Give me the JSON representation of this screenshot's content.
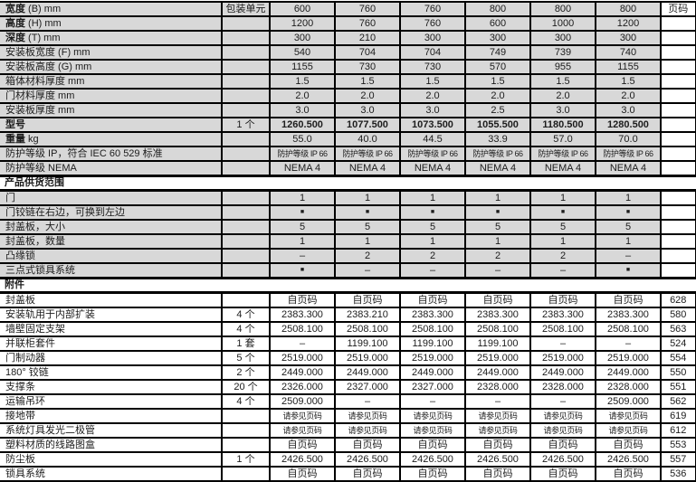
{
  "page_column_header": "页码",
  "sections": [
    {
      "id": "specifications",
      "shaded": true,
      "title": "",
      "rows": [
        {
          "label_bold": "宽度",
          "label": " (B) mm",
          "unit": "包装单元",
          "values": [
            "600",
            "760",
            "760",
            "800",
            "800",
            "800"
          ],
          "page": "页码"
        },
        {
          "label_bold": "高度",
          "label": " (H) mm",
          "unit": "",
          "values": [
            "1200",
            "760",
            "760",
            "600",
            "1000",
            "1200"
          ],
          "page": ""
        },
        {
          "label_bold": "深度",
          "label": " (T) mm",
          "unit": "",
          "values": [
            "300",
            "210",
            "300",
            "300",
            "300",
            "300"
          ],
          "page": ""
        },
        {
          "label_bold": "",
          "label": "安装板宽度 (F) mm",
          "unit": "",
          "values": [
            "540",
            "704",
            "704",
            "749",
            "739",
            "740"
          ],
          "page": ""
        },
        {
          "label_bold": "",
          "label": "安装板高度 (G) mm",
          "unit": "",
          "values": [
            "1155",
            "730",
            "730",
            "570",
            "955",
            "1155"
          ],
          "page": ""
        },
        {
          "label_bold": "",
          "label": "箱体材料厚度 mm",
          "unit": "",
          "values": [
            "1.5",
            "1.5",
            "1.5",
            "1.5",
            "1.5",
            "1.5"
          ],
          "page": ""
        },
        {
          "label_bold": "",
          "label": "门材料厚度 mm",
          "unit": "",
          "values": [
            "2.0",
            "2.0",
            "2.0",
            "2.0",
            "2.0",
            "2.0"
          ],
          "page": ""
        },
        {
          "label_bold": "",
          "label": "安装板厚度 mm",
          "unit": "",
          "values": [
            "3.0",
            "3.0",
            "3.0",
            "2.5",
            "3.0",
            "3.0"
          ],
          "page": ""
        },
        {
          "label_bold": "型号",
          "label": "",
          "unit": "1 个",
          "bold_values": true,
          "values": [
            "1260.500",
            "1077.500",
            "1073.500",
            "1055.500",
            "1180.500",
            "1280.500"
          ],
          "page": ""
        },
        {
          "label_bold": "重量",
          "label": " kg",
          "unit": "",
          "values": [
            "55.0",
            "40.0",
            "44.5",
            "33.9",
            "57.0",
            "70.0"
          ],
          "page": ""
        },
        {
          "label_bold": "",
          "label": "防护等级 IP，符合 IEC 60 529 标准",
          "unit": "",
          "values": [
            "防护等级 IP 66",
            "防护等级 IP 66",
            "防护等级 IP 66",
            "防护等级 IP 66",
            "防护等级 IP 66",
            "防护等级 IP 66"
          ],
          "page": ""
        },
        {
          "label_bold": "",
          "label": "防护等级 NEMA",
          "unit": "",
          "values": [
            "NEMA 4",
            "NEMA 4",
            "NEMA 4",
            "NEMA 4",
            "NEMA 4",
            "NEMA 4"
          ],
          "page": ""
        }
      ]
    },
    {
      "id": "scope-of-delivery",
      "shaded": true,
      "title": "产品供货范围",
      "rows": [
        {
          "label_bold": "",
          "label": "门",
          "unit": "",
          "values": [
            "1",
            "1",
            "1",
            "1",
            "1",
            "1"
          ],
          "page": ""
        },
        {
          "label_bold": "",
          "label": "门铰链在右边，可换到左边",
          "unit": "",
          "values": [
            "■",
            "■",
            "■",
            "■",
            "■",
            "■"
          ],
          "page": ""
        },
        {
          "label_bold": "",
          "label": "封盖板，大小",
          "unit": "",
          "values": [
            "5",
            "5",
            "5",
            "5",
            "5",
            "5"
          ],
          "page": ""
        },
        {
          "label_bold": "",
          "label": "封盖板，数量",
          "unit": "",
          "values": [
            "1",
            "1",
            "1",
            "1",
            "1",
            "1"
          ],
          "page": ""
        },
        {
          "label_bold": "",
          "label": "凸缘锁",
          "unit": "",
          "values": [
            "–",
            "2",
            "2",
            "2",
            "2",
            "–"
          ],
          "page": ""
        },
        {
          "label_bold": "",
          "label": "三点式锁具系统",
          "unit": "",
          "values": [
            "■",
            "–",
            "–",
            "–",
            "–",
            "■"
          ],
          "page": ""
        }
      ]
    },
    {
      "id": "accessories",
      "shaded": false,
      "title": "附件",
      "rows": [
        {
          "label_bold": "",
          "label": "封盖板",
          "unit": "",
          "values": [
            "自页码",
            "自页码",
            "自页码",
            "自页码",
            "自页码",
            "自页码"
          ],
          "page": "628"
        },
        {
          "label_bold": "",
          "label": "安装轨用于内部扩装",
          "unit": "4 个",
          "values": [
            "2383.300",
            "2383.210",
            "2383.300",
            "2383.300",
            "2383.300",
            "2383.300"
          ],
          "page": "580"
        },
        {
          "label_bold": "",
          "label": "墙壁固定支架",
          "unit": "4 个",
          "values": [
            "2508.100",
            "2508.100",
            "2508.100",
            "2508.100",
            "2508.100",
            "2508.100"
          ],
          "page": "563"
        },
        {
          "label_bold": "",
          "label": "并联柜套件",
          "unit": "1 套",
          "values": [
            "–",
            "1199.100",
            "1199.100",
            "1199.100",
            "–",
            "–"
          ],
          "page": "524"
        },
        {
          "label_bold": "",
          "label": "门制动器",
          "unit": "5 个",
          "values": [
            "2519.000",
            "2519.000",
            "2519.000",
            "2519.000",
            "2519.000",
            "2519.000"
          ],
          "page": "554"
        },
        {
          "label_bold": "",
          "label": "180° 铰链",
          "unit": "2 个",
          "values": [
            "2449.000",
            "2449.000",
            "2449.000",
            "2449.000",
            "2449.000",
            "2449.000"
          ],
          "page": "550"
        },
        {
          "label_bold": "",
          "label": "支撑条",
          "unit": "20 个",
          "values": [
            "2326.000",
            "2327.000",
            "2327.000",
            "2328.000",
            "2328.000",
            "2328.000"
          ],
          "page": "551"
        },
        {
          "label_bold": "",
          "label": "运输吊环",
          "unit": "4 个",
          "values": [
            "2509.000",
            "–",
            "–",
            "–",
            "–",
            "2509.000"
          ],
          "page": "562"
        },
        {
          "label_bold": "",
          "label": "接地带",
          "unit": "",
          "values": [
            "请参见页码",
            "请参见页码",
            "请参见页码",
            "请参见页码",
            "请参见页码",
            "请参见页码"
          ],
          "page": "619"
        },
        {
          "label_bold": "",
          "label": "系统灯具发光二极管",
          "unit": "",
          "values": [
            "请参见页码",
            "请参见页码",
            "请参见页码",
            "请参见页码",
            "请参见页码",
            "请参见页码"
          ],
          "page": "612"
        },
        {
          "label_bold": "",
          "label": "塑料材质的线路图盒",
          "unit": "",
          "values": [
            "自页码",
            "自页码",
            "自页码",
            "自页码",
            "自页码",
            "自页码"
          ],
          "page": "553"
        },
        {
          "label_bold": "",
          "label": "防尘板",
          "unit": "1 个",
          "values": [
            "2426.500",
            "2426.500",
            "2426.500",
            "2426.500",
            "2426.500",
            "2426.500"
          ],
          "page": "557"
        },
        {
          "label_bold": "",
          "label": "锁具系统",
          "unit": "",
          "values": [
            "自页码",
            "自页码",
            "自页码",
            "自页码",
            "自页码",
            "自页码"
          ],
          "page": "536"
        }
      ]
    }
  ]
}
